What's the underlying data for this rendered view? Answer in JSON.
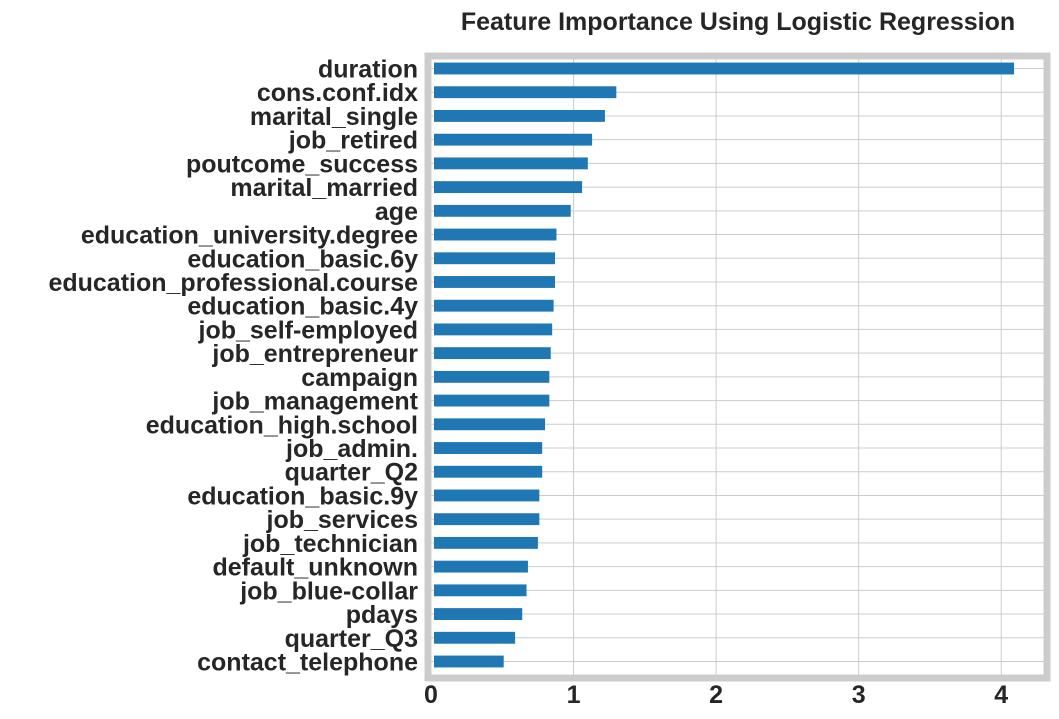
{
  "chart_data": {
    "type": "bar",
    "orientation": "horizontal",
    "title": "Feature Importance Using Logistic Regression",
    "xlabel": "",
    "ylabel": "",
    "xlim": [
      0,
      4.3
    ],
    "xticks": [
      0,
      1,
      2,
      3,
      4
    ],
    "grid": true,
    "bar_color": "#1f77b4",
    "categories": [
      "duration",
      "cons.conf.idx",
      "marital_single",
      "job_retired",
      "poutcome_success",
      "marital_married",
      "age",
      "education_university.degree",
      "education_basic.6y",
      "education_professional.course",
      "education_basic.4y",
      "job_self-employed",
      "job_entrepreneur",
      "campaign",
      "job_management",
      "education_high.school",
      "job_admin.",
      "quarter_Q2",
      "education_basic.9y",
      "job_services",
      "job_technician",
      "default_unknown",
      "job_blue-collar",
      "pdays",
      "quarter_Q3",
      "contact_telephone"
    ],
    "values": [
      4.09,
      1.3,
      1.22,
      1.13,
      1.1,
      1.06,
      0.98,
      0.88,
      0.87,
      0.87,
      0.86,
      0.85,
      0.84,
      0.83,
      0.83,
      0.8,
      0.78,
      0.78,
      0.76,
      0.76,
      0.75,
      0.68,
      0.67,
      0.64,
      0.59,
      0.51
    ]
  }
}
